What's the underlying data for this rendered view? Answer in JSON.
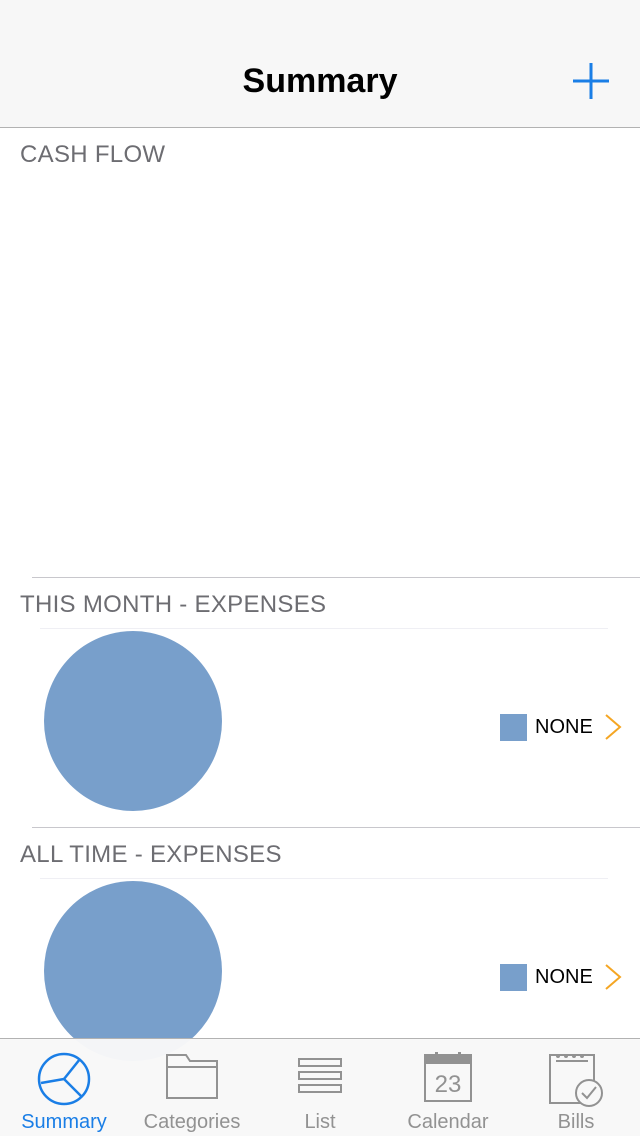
{
  "colors": {
    "accent": "#1a7ee6",
    "pie": "#789fcb",
    "chevron": "#f5a623",
    "inactive": "#929292"
  },
  "header": {
    "title": "Summary",
    "add_icon": "plus-icon"
  },
  "sections": {
    "cash_flow": {
      "title": "CASH FLOW"
    },
    "this_month": {
      "title": "THIS MONTH - EXPENSES",
      "legend": [
        {
          "label": "NONE",
          "color": "#789fcb"
        }
      ]
    },
    "all_time": {
      "title": "ALL TIME - EXPENSES",
      "legend": [
        {
          "label": "NONE",
          "color": "#789fcb"
        }
      ]
    }
  },
  "chart_data": [
    {
      "type": "pie",
      "title": "THIS MONTH - EXPENSES",
      "categories": [
        "NONE"
      ],
      "values": [
        1
      ]
    },
    {
      "type": "pie",
      "title": "ALL TIME - EXPENSES",
      "categories": [
        "NONE"
      ],
      "values": [
        1
      ]
    }
  ],
  "tabbar": {
    "tabs": [
      {
        "label": "Summary",
        "icon": "pie-chart-icon",
        "active": true
      },
      {
        "label": "Categories",
        "icon": "folder-icon",
        "active": false
      },
      {
        "label": "List",
        "icon": "list-icon",
        "active": false
      },
      {
        "label": "Calendar",
        "icon": "calendar-icon",
        "active": false,
        "icon_text": "23"
      },
      {
        "label": "Bills",
        "icon": "bill-check-icon",
        "active": false
      }
    ]
  }
}
